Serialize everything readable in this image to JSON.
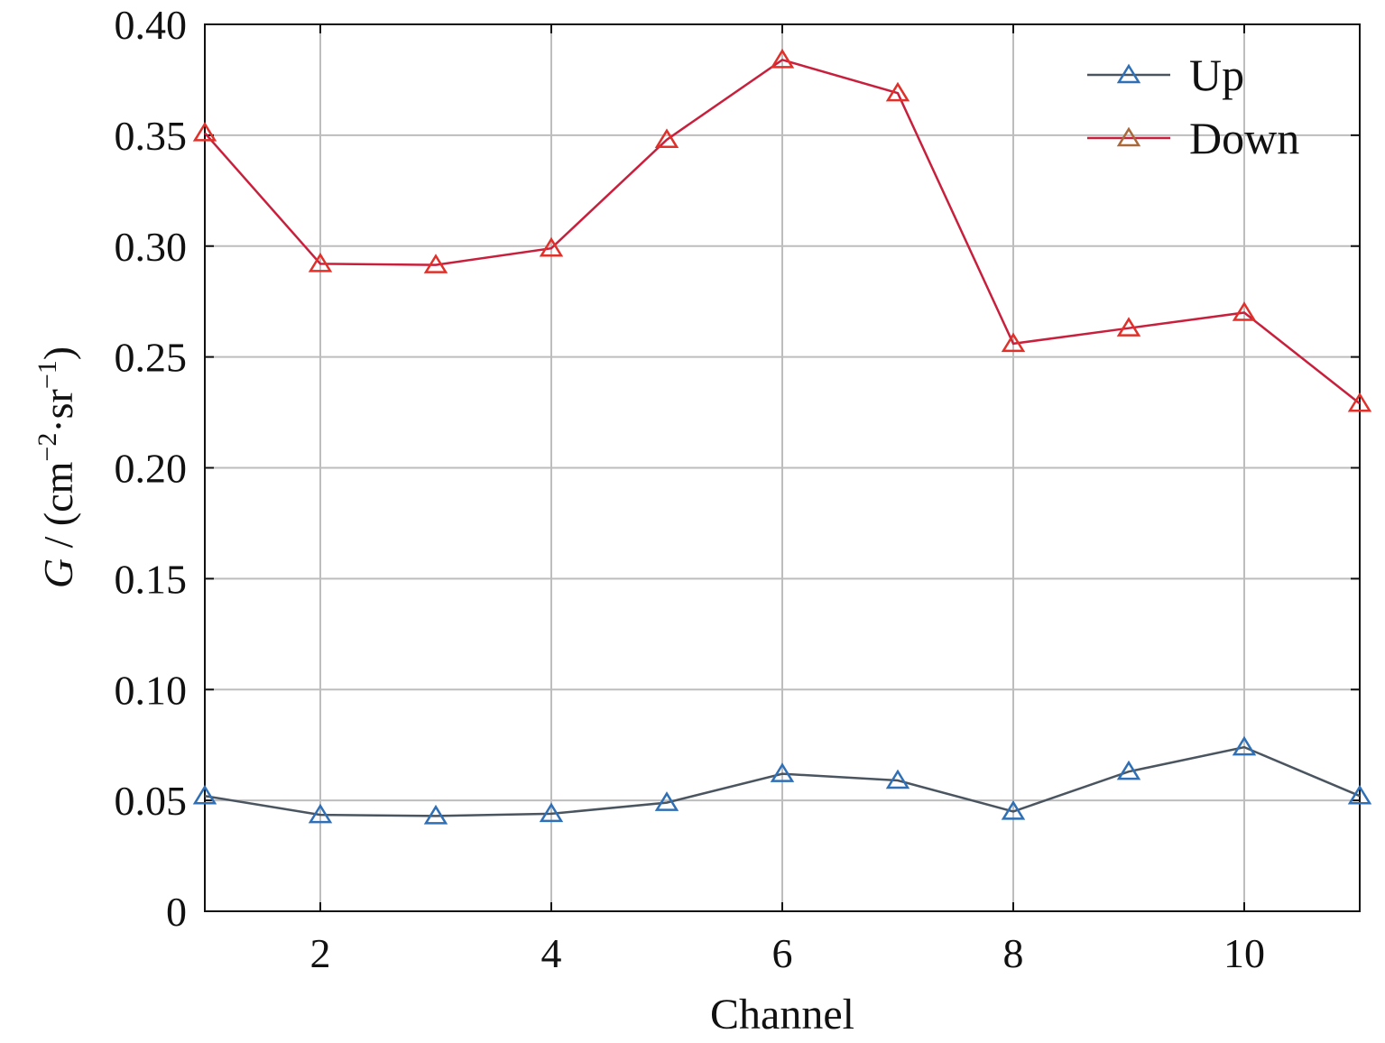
{
  "chart_data": {
    "type": "line",
    "title": "",
    "xlabel": "Channel",
    "ylabel_italic": "G",
    "ylabel_rest": " / (cm",
    "ylabel_sup1": "−2",
    "ylabel_mid": "·sr",
    "ylabel_sup2": "−1",
    "ylabel_end": ")",
    "xlim": [
      1,
      11
    ],
    "ylim": [
      0,
      0.4
    ],
    "xticks": [
      2,
      4,
      6,
      8,
      10
    ],
    "yticks": [
      0,
      0.05,
      0.1,
      0.15,
      0.2,
      0.25,
      0.3,
      0.35,
      0.4
    ],
    "ytick_labels": [
      "0",
      "0.05",
      "0.10",
      "0.15",
      "0.20",
      "0.25",
      "0.30",
      "0.35",
      "0.40"
    ],
    "grid": true,
    "legend_position": "top-right",
    "x": [
      1,
      2,
      3,
      4,
      5,
      6,
      7,
      8,
      9,
      10,
      11
    ],
    "series": [
      {
        "name": "Up",
        "line_color": "#4a5560",
        "marker_color": "#2f6fb5",
        "legend_marker_color": "#2f6fb5",
        "marker": "triangle",
        "values": [
          0.052,
          0.0435,
          0.043,
          0.044,
          0.049,
          0.062,
          0.059,
          0.045,
          0.063,
          0.074,
          0.052
        ]
      },
      {
        "name": "Down",
        "line_color": "#c8203c",
        "marker_color": "#e0302a",
        "legend_marker_color": "#a8683a",
        "marker": "triangle",
        "values": [
          0.351,
          0.292,
          0.2915,
          0.299,
          0.348,
          0.384,
          0.369,
          0.256,
          0.263,
          0.27,
          0.229
        ]
      }
    ]
  }
}
